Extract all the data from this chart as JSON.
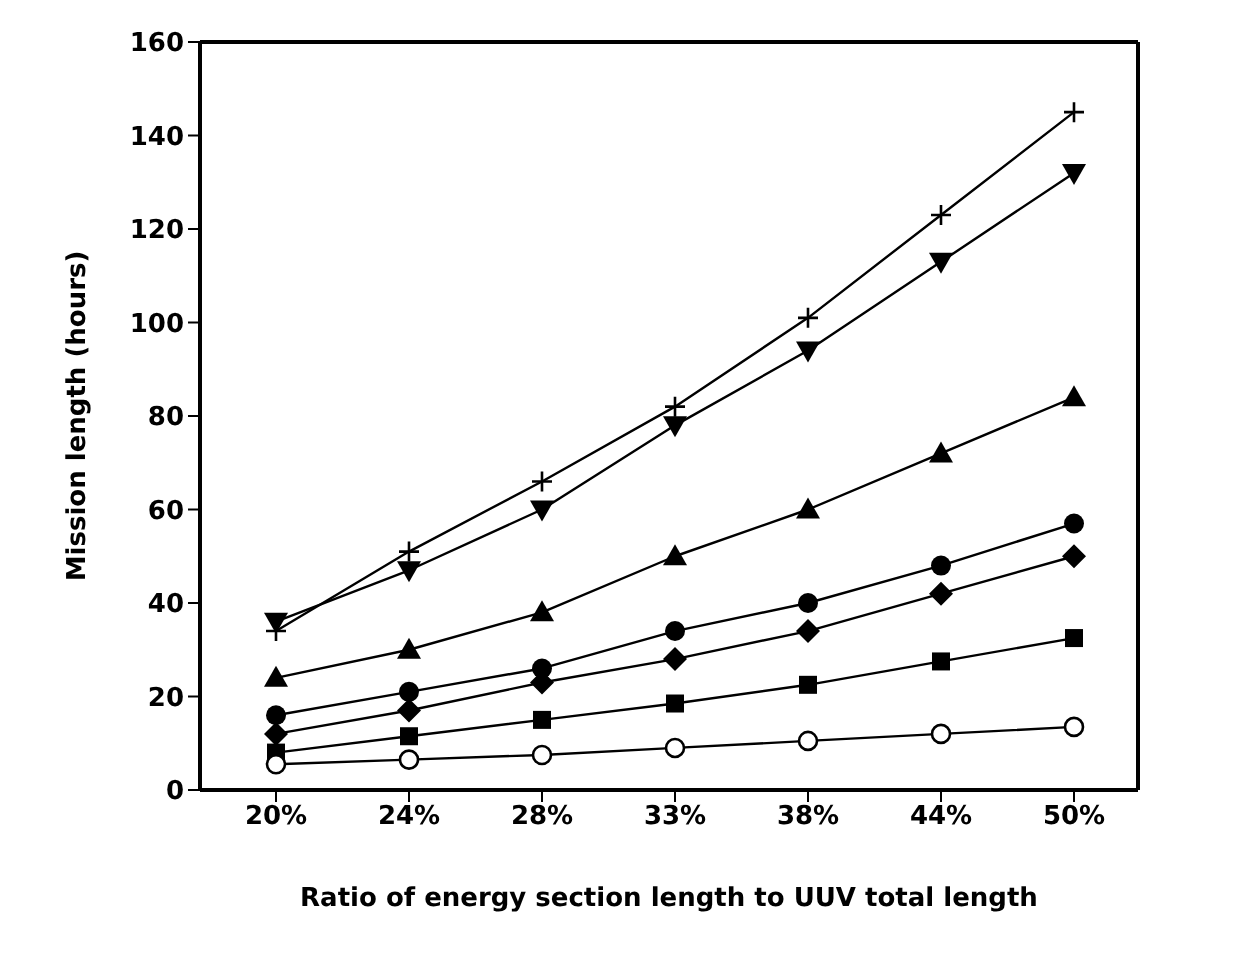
{
  "chart_data": {
    "type": "line",
    "xlabel": "Ratio of energy section length to UUV total length",
    "ylabel": "Mission length (hours)",
    "categories": [
      "20%",
      "24%",
      "28%",
      "33%",
      "38%",
      "44%",
      "50%"
    ],
    "ylim": [
      0,
      160
    ],
    "yticks": [
      0,
      20,
      40,
      60,
      80,
      100,
      120,
      140,
      160
    ],
    "line_style": "solid",
    "series": [
      {
        "color": "#000000",
        "marker": "cross",
        "values": [
          34,
          51,
          66,
          82,
          101,
          123,
          145
        ]
      },
      {
        "color": "#000000",
        "marker": "triangle-down",
        "values": [
          36,
          47,
          60,
          78,
          94,
          113,
          132
        ]
      },
      {
        "color": "#000000",
        "marker": "triangle",
        "values": [
          24,
          30,
          38,
          50,
          60,
          72,
          84
        ]
      },
      {
        "color": "#000000",
        "marker": "circle",
        "values": [
          16,
          21,
          26,
          34,
          40,
          48,
          57
        ]
      },
      {
        "color": "#000000",
        "marker": "diamond",
        "values": [
          12,
          17,
          23,
          28,
          34,
          42,
          50
        ]
      },
      {
        "color": "#000000",
        "marker": "square",
        "values": [
          8,
          11.5,
          15,
          18.5,
          22.5,
          27.5,
          32.5
        ]
      },
      {
        "color": "#000000",
        "marker": "circle-open",
        "values": [
          5.5,
          6.5,
          7.5,
          9,
          10.5,
          12,
          13.5
        ]
      }
    ]
  }
}
